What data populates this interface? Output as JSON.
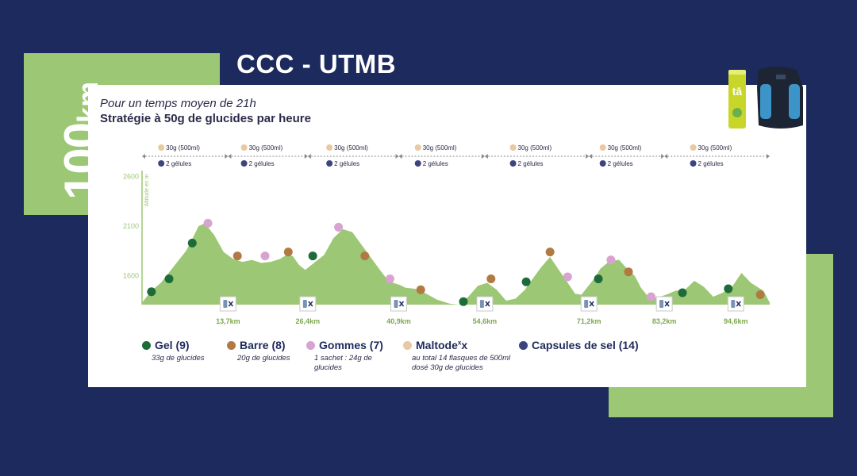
{
  "colors": {
    "navy": "#1c2a5e",
    "green_panel": "#9cc774",
    "profile_fill": "#9cc774",
    "gel": "#1e6b3a",
    "barre": "#b07a42",
    "gommes": "#d8a3d0",
    "maltodex": "#e8c9a1",
    "capsules": "#3a4580"
  },
  "header": {
    "distance_number": "100",
    "distance_unit": "km",
    "title": "CCC - UTMB",
    "subtitle_time": "Pour un temps moyen de 21h",
    "subtitle_strategy": "Stratégie à 50g de glucides par heure"
  },
  "products": {
    "tube_label": "tā",
    "icons": [
      "electrolyte-tube-icon",
      "hydration-vest-icon"
    ]
  },
  "chart_data": {
    "type": "area",
    "ylabel": "Altitude en m",
    "yticks": [
      2600,
      2100,
      1600
    ],
    "ylim": [
      1300,
      2650
    ],
    "xlim": [
      0,
      100
    ],
    "profile": {
      "x": [
        0,
        1.5,
        3,
        5.5,
        7,
        8,
        9,
        10,
        11.5,
        13,
        14.5,
        16,
        17.5,
        19,
        20.5,
        22,
        23,
        24,
        25,
        26,
        27,
        29,
        30.5,
        32,
        33.5,
        35,
        36.5,
        38,
        39,
        40,
        41,
        42,
        43.5,
        45,
        47,
        49,
        50.5,
        52,
        53.5,
        55,
        56.5,
        58,
        59.5,
        61,
        62,
        63.5,
        65,
        66.5,
        67.5,
        69,
        70,
        71,
        72,
        73,
        74.5,
        76,
        77,
        78.5,
        79.5,
        80.5,
        82,
        83.5,
        85,
        86.5,
        88,
        89.5,
        91,
        92.5,
        94,
        95.5,
        97,
        99,
        100
      ],
      "y": [
        1320,
        1440,
        1520,
        1720,
        1840,
        1960,
        2090,
        2120,
        2000,
        1830,
        1760,
        1730,
        1750,
        1720,
        1730,
        1760,
        1800,
        1790,
        1700,
        1650,
        1700,
        1800,
        1970,
        2060,
        2030,
        1900,
        1770,
        1640,
        1560,
        1520,
        1500,
        1470,
        1460,
        1420,
        1350,
        1310,
        1300,
        1380,
        1490,
        1520,
        1450,
        1340,
        1360,
        1450,
        1540,
        1670,
        1780,
        1640,
        1550,
        1410,
        1400,
        1480,
        1560,
        1660,
        1740,
        1750,
        1680,
        1590,
        1470,
        1390,
        1370,
        1400,
        1440,
        1450,
        1540,
        1480,
        1380,
        1420,
        1480,
        1620,
        1520,
        1440,
        1320
      ]
    },
    "bottom_altitude": 1300,
    "refuel_stations": [
      {
        "x": 13.7,
        "label": "13,7km"
      },
      {
        "x": 26.4,
        "label": "26,4km"
      },
      {
        "x": 40.9,
        "label": "40,9km"
      },
      {
        "x": 54.6,
        "label": "54,6km"
      },
      {
        "x": 71.2,
        "label": "71,2km"
      },
      {
        "x": 83.2,
        "label": "83,2km"
      },
      {
        "x": 94.6,
        "label": "94,6km"
      }
    ],
    "segments": [
      {
        "from": 0,
        "to": 13.7,
        "maltodex": "30g (500ml)",
        "capsules": "2 gélules"
      },
      {
        "from": 13.7,
        "to": 26.4,
        "maltodex": "30g (500ml)",
        "capsules": "2 gélules"
      },
      {
        "from": 26.4,
        "to": 40.9,
        "maltodex": "30g (500ml)",
        "capsules": "2 gélules"
      },
      {
        "from": 40.9,
        "to": 54.6,
        "maltodex": "30g (500ml)",
        "capsules": "2 gélules"
      },
      {
        "from": 54.6,
        "to": 71.2,
        "maltodex": "30g (500ml)",
        "capsules": "2 gélules"
      },
      {
        "from": 71.2,
        "to": 83.2,
        "maltodex": "30g (500ml)",
        "capsules": "2 gélules"
      },
      {
        "from": 83.2,
        "to": 100,
        "maltodex": "30g (500ml)",
        "capsules": "2 gélules"
      }
    ],
    "markers": [
      {
        "type": "gel",
        "x": 1.5,
        "y": 1430
      },
      {
        "type": "gel",
        "x": 4.3,
        "y": 1560
      },
      {
        "type": "gel",
        "x": 8,
        "y": 1920
      },
      {
        "type": "gommes",
        "x": 10.5,
        "y": 2120
      },
      {
        "type": "barre",
        "x": 15.2,
        "y": 1790
      },
      {
        "type": "gommes",
        "x": 19.6,
        "y": 1790
      },
      {
        "type": "barre",
        "x": 23.3,
        "y": 1830
      },
      {
        "type": "gel",
        "x": 27.2,
        "y": 1790
      },
      {
        "type": "gommes",
        "x": 31.3,
        "y": 2080
      },
      {
        "type": "barre",
        "x": 35.5,
        "y": 1790
      },
      {
        "type": "gommes",
        "x": 39.5,
        "y": 1560
      },
      {
        "type": "barre",
        "x": 44.4,
        "y": 1450
      },
      {
        "type": "gel",
        "x": 51.2,
        "y": 1330
      },
      {
        "type": "barre",
        "x": 55.6,
        "y": 1560
      },
      {
        "type": "gel",
        "x": 61.2,
        "y": 1530
      },
      {
        "type": "barre",
        "x": 65,
        "y": 1830
      },
      {
        "type": "gommes",
        "x": 67.8,
        "y": 1580
      },
      {
        "type": "gel",
        "x": 72.7,
        "y": 1560
      },
      {
        "type": "gommes",
        "x": 74.7,
        "y": 1750
      },
      {
        "type": "barre",
        "x": 77.5,
        "y": 1630
      },
      {
        "type": "gommes",
        "x": 81.1,
        "y": 1380
      },
      {
        "type": "gel",
        "x": 86.1,
        "y": 1420
      },
      {
        "type": "gel",
        "x": 93.4,
        "y": 1460
      },
      {
        "type": "barre",
        "x": 98.5,
        "y": 1400
      }
    ]
  },
  "legend": [
    {
      "type": "gel",
      "name": "Gel (9)",
      "desc": "33g de glucides"
    },
    {
      "type": "barre",
      "name": "Barre (8)",
      "desc": "20g de glucides"
    },
    {
      "type": "gommes",
      "name": "Gommes (7)",
      "desc": "1 sachet : 24g de glucides"
    },
    {
      "type": "maltodex",
      "name_main": "Maltode",
      "name_sup": "x",
      "name_end": "x",
      "desc": "au total 14 flasques de 500ml dosé 30g de glucides"
    },
    {
      "type": "capsules",
      "name": "Capsules de sel (14)",
      "desc": ""
    }
  ]
}
